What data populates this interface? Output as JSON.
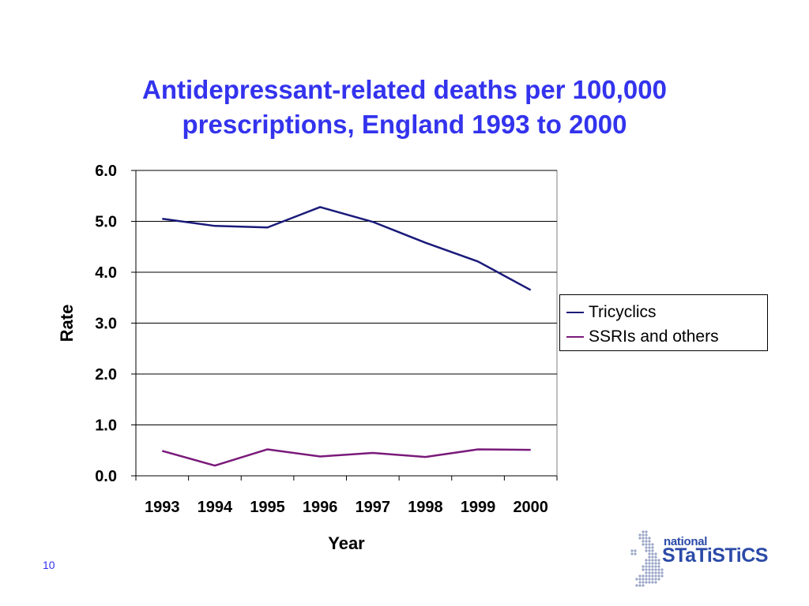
{
  "chart_data": {
    "type": "line",
    "title": [
      "Antidepressant-related deaths per 100,000",
      "prescriptions, England 1993 to 2000"
    ],
    "xlabel": "Year",
    "ylabel": "Rate",
    "categories": [
      "1993",
      "1994",
      "1995",
      "1996",
      "1997",
      "1998",
      "1999",
      "2000"
    ],
    "ylim": [
      0,
      6
    ],
    "yticks": [
      "0.0",
      "1.0",
      "2.0",
      "3.0",
      "4.0",
      "5.0",
      "6.0"
    ],
    "grid": true,
    "legend_position": "right",
    "series": [
      {
        "name": "Tricyclics",
        "color": "#1a1a7a",
        "values": [
          5.05,
          4.91,
          4.88,
          5.28,
          4.99,
          4.58,
          4.21,
          3.65
        ]
      },
      {
        "name": "SSRIs and others",
        "color": "#7a1a7a",
        "values": [
          0.49,
          0.2,
          0.52,
          0.38,
          0.45,
          0.37,
          0.52,
          0.51
        ]
      }
    ]
  },
  "slide_number": "10",
  "logo": {
    "line1": "national",
    "line2": "STaTiSTiCS"
  }
}
